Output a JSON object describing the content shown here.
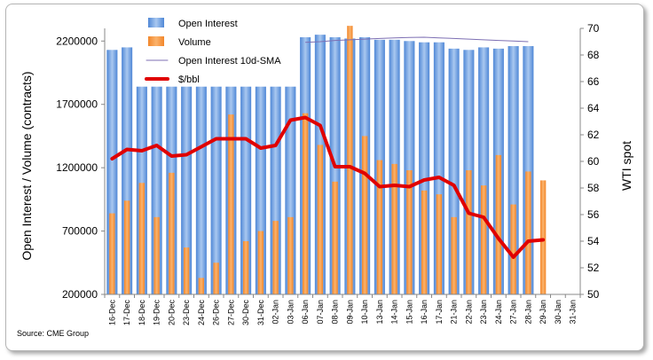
{
  "chart_data": {
    "type": "bar",
    "title": "",
    "source": "Source: CME Group",
    "ylabel_left": "Open Interest / Volume (contracts)",
    "ylabel_right": "WTI spot",
    "y_left_range": [
      200000,
      2300000
    ],
    "y_left_ticks": [
      "200000",
      "700000",
      "1200000",
      "1700000",
      "2200000"
    ],
    "y_right_range": [
      50,
      70
    ],
    "y_right_ticks": [
      "50",
      "52",
      "54",
      "56",
      "58",
      "60",
      "62",
      "64",
      "66",
      "68",
      "70"
    ],
    "categories": [
      "16-Dec",
      "17-Dec",
      "18-Dec",
      "19-Dec",
      "20-Dec",
      "23-Dec",
      "24-Dec",
      "26-Dec",
      "27-Dec",
      "30-Dec",
      "31-Dec",
      "02-Jan",
      "03-Jan",
      "06-Jan",
      "07-Jan",
      "08-Jan",
      "09-Jan",
      "10-Jan",
      "13-Jan",
      "14-Jan",
      "15-Jan",
      "16-Jan",
      "17-Jan",
      "21-Jan",
      "22-Jan",
      "23-Jan",
      "24-Jan",
      "27-Jan",
      "28-Jan",
      "29-Jan",
      "30-Jan",
      "31-Jan"
    ],
    "legend_position": "top-left",
    "grid": false,
    "series": [
      {
        "name": "Open Interest",
        "kind": "bar",
        "axis": "left",
        "color": "#6a9fe0",
        "values": [
          2130000,
          2150000,
          1840000,
          1840000,
          1840000,
          1840000,
          1840000,
          1840000,
          1840000,
          1840000,
          1840000,
          1840000,
          1840000,
          2230000,
          2250000,
          2230000,
          2220000,
          2230000,
          2210000,
          2210000,
          2200000,
          2190000,
          2190000,
          2140000,
          2130000,
          2150000,
          2140000,
          2160000,
          2160000,
          null,
          null,
          null
        ]
      },
      {
        "name": "Volume",
        "kind": "bar",
        "axis": "left",
        "color": "#f7933b",
        "values": [
          840000,
          940000,
          1080000,
          810000,
          1160000,
          570000,
          330000,
          450000,
          1620000,
          620000,
          700000,
          780000,
          810000,
          1630000,
          1380000,
          1090000,
          2320000,
          1450000,
          1260000,
          1230000,
          1180000,
          1020000,
          990000,
          810000,
          1180000,
          1060000,
          1300000,
          910000,
          1170000,
          1100000,
          null,
          null
        ]
      },
      {
        "name": "Open Interest 10d-SMA",
        "kind": "line",
        "axis": "left",
        "color": "#7d6fb3",
        "values": [
          null,
          null,
          null,
          null,
          null,
          null,
          null,
          null,
          null,
          null,
          null,
          null,
          null,
          2190000,
          2195000,
          2205000,
          2210000,
          2215000,
          2220000,
          2225000,
          2228000,
          2230000,
          2225000,
          2220000,
          2215000,
          2210000,
          2205000,
          2200000,
          2195000,
          null,
          null,
          null
        ]
      },
      {
        "name": "$/bbl",
        "kind": "line",
        "axis": "right",
        "color": "#e00000",
        "values": [
          60.2,
          60.9,
          60.8,
          61.2,
          60.4,
          60.5,
          61.1,
          61.7,
          61.7,
          61.7,
          61.0,
          61.2,
          63.1,
          63.3,
          62.7,
          59.6,
          59.6,
          59.1,
          58.1,
          58.2,
          58.1,
          58.6,
          58.8,
          58.2,
          56.1,
          55.8,
          54.2,
          52.8,
          54.0,
          54.1,
          null,
          null
        ]
      }
    ]
  }
}
